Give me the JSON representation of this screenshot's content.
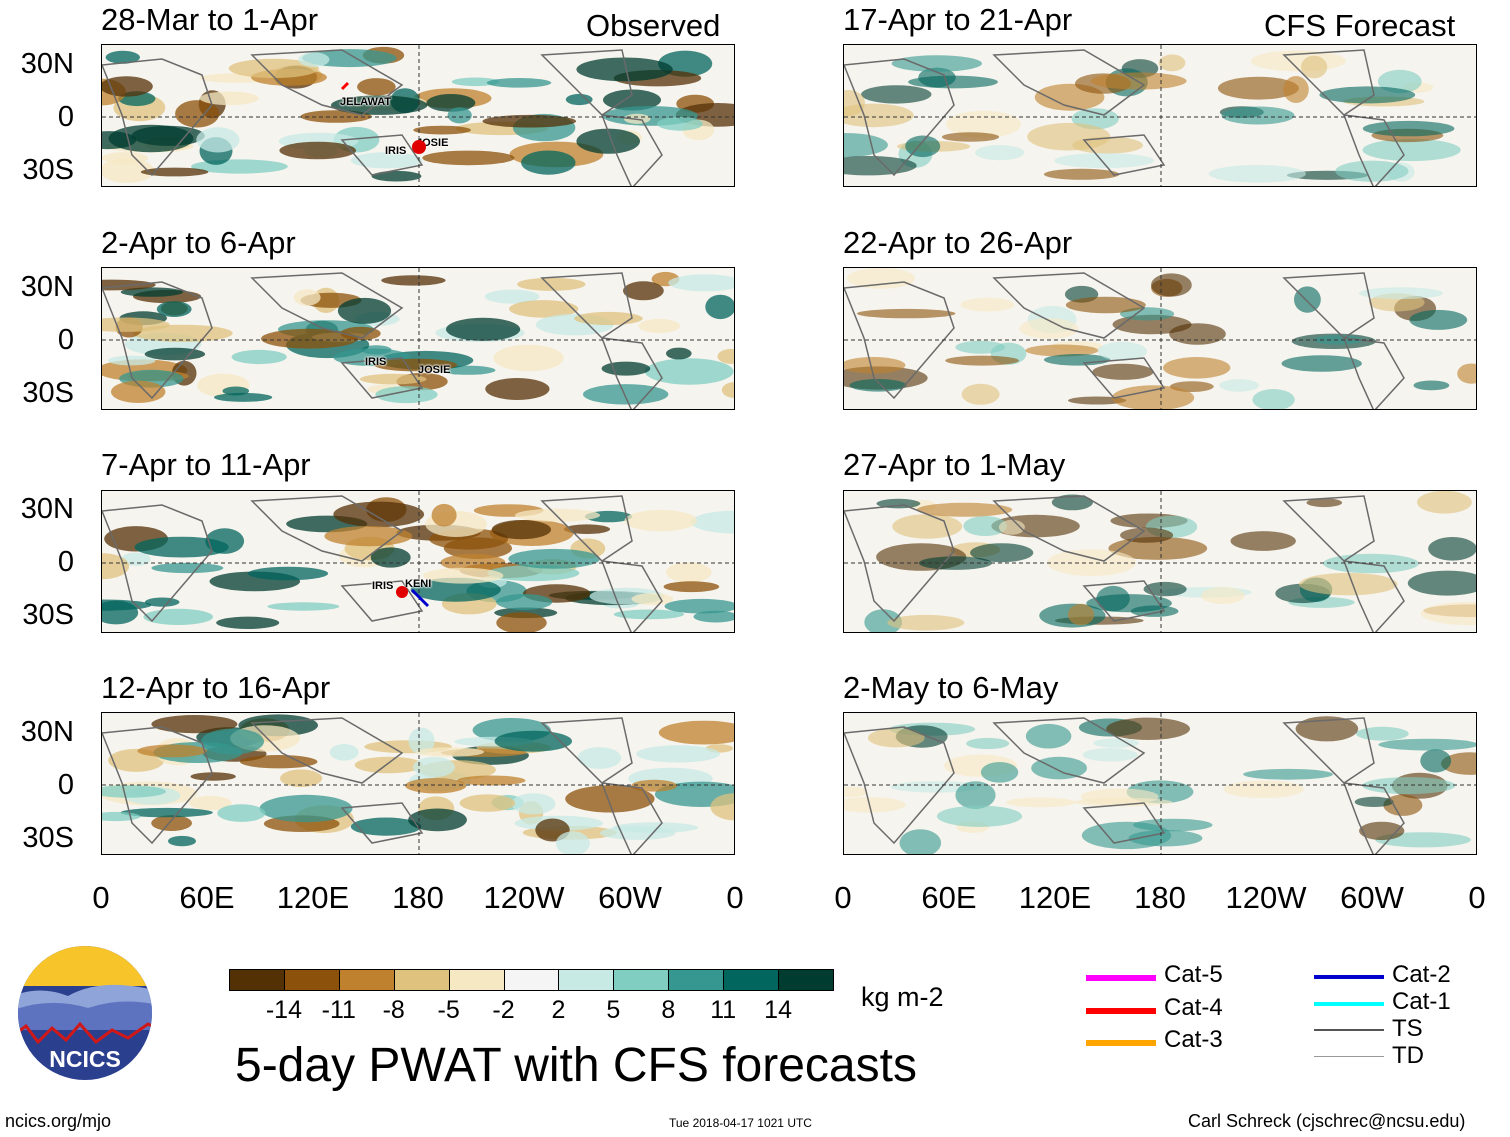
{
  "header": {
    "left_label": "Observed",
    "right_label": "CFS Forecast"
  },
  "panels_left": [
    {
      "title": "28-Mar to 1-Apr",
      "storms": [
        "JELAWAT",
        "IRIS",
        "JOSIE"
      ]
    },
    {
      "title": "2-Apr to 6-Apr",
      "storms": [
        "IRIS",
        "JOSIE"
      ]
    },
    {
      "title": "7-Apr to 11-Apr",
      "storms": [
        "IRIS",
        "KENI"
      ]
    },
    {
      "title": "12-Apr to 16-Apr",
      "storms": []
    }
  ],
  "panels_right": [
    {
      "title": "17-Apr to 21-Apr"
    },
    {
      "title": "22-Apr to 26-Apr"
    },
    {
      "title": "27-Apr to 1-May"
    },
    {
      "title": "2-May to 6-May"
    }
  ],
  "y_labels": [
    "30N",
    "0",
    "30S"
  ],
  "x_labels": [
    "0",
    "60E",
    "120E",
    "180",
    "120W",
    "60W",
    "0"
  ],
  "colorbar": {
    "colors": [
      "#543005",
      "#8c510a",
      "#bf812d",
      "#dfc27d",
      "#f6e8c3",
      "#f5f5f5",
      "#c7eae5",
      "#80cdc1",
      "#35978f",
      "#01665e",
      "#003c30"
    ],
    "tick_labels": [
      "-14",
      "-11",
      "-8",
      "-5",
      "-2",
      "2",
      "5",
      "8",
      "11",
      "14"
    ],
    "units": "kg m-2"
  },
  "tracks_legend": [
    {
      "label": "Cat-5",
      "color": "#ff00ff"
    },
    {
      "label": "Cat-4",
      "color": "#ff0000"
    },
    {
      "label": "Cat-3",
      "color": "#ffa500"
    },
    {
      "label": "Cat-2",
      "color": "#0000cd"
    },
    {
      "label": "Cat-1",
      "color": "#00ffff"
    },
    {
      "label": "TS",
      "color": "#555555"
    },
    {
      "label": "TD",
      "color": "#999999"
    }
  ],
  "footer": {
    "title": "5-day PWAT with CFS forecasts",
    "logo_text": "NCICS",
    "url": "ncics.org/mjo",
    "timestamp": "Tue 2018-04-17 1021 UTC",
    "credit": "Carl Schreck (cjschrec@ncsu.edu)"
  }
}
